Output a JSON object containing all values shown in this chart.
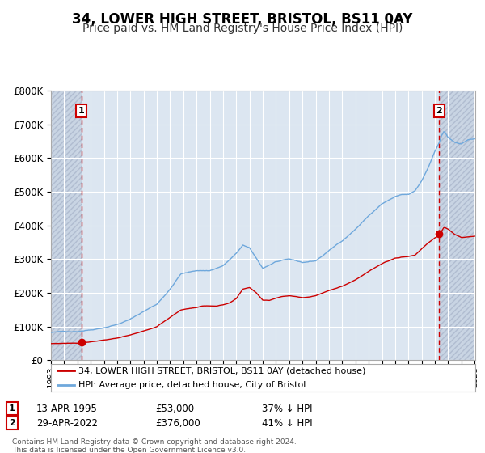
{
  "title": "34, LOWER HIGH STREET, BRISTOL, BS11 0AY",
  "subtitle": "Price paid vs. HM Land Registry's House Price Index (HPI)",
  "title_fontsize": 12,
  "subtitle_fontsize": 10,
  "background_color": "#ffffff",
  "plot_bg_color": "#dce6f1",
  "grid_color": "#ffffff",
  "hatch_color": "#c8d4e3",
  "ylim": [
    0,
    800000
  ],
  "yticks": [
    0,
    100000,
    200000,
    300000,
    400000,
    500000,
    600000,
    700000,
    800000
  ],
  "ytick_labels": [
    "£0",
    "£100K",
    "£200K",
    "£300K",
    "£400K",
    "£500K",
    "£600K",
    "£700K",
    "£800K"
  ],
  "purchase1": {
    "date_idx": 1995.29,
    "price": 53000,
    "label": "1"
  },
  "purchase2": {
    "date_idx": 2022.33,
    "price": 376000,
    "label": "2"
  },
  "vline_color": "#cc0000",
  "hpi_color": "#6fa8dc",
  "price_color": "#cc0000",
  "marker_color": "#cc0000",
  "legend_label_price": "34, LOWER HIGH STREET, BRISTOL, BS11 0AY (detached house)",
  "legend_label_hpi": "HPI: Average price, detached house, City of Bristol",
  "annotation1_date": "13-APR-1995",
  "annotation1_price": "£53,000",
  "annotation1_info": "37% ↓ HPI",
  "annotation2_date": "29-APR-2022",
  "annotation2_price": "£376,000",
  "annotation2_info": "41% ↓ HPI",
  "footer": "Contains HM Land Registry data © Crown copyright and database right 2024.\nThis data is licensed under the Open Government Licence v3.0."
}
